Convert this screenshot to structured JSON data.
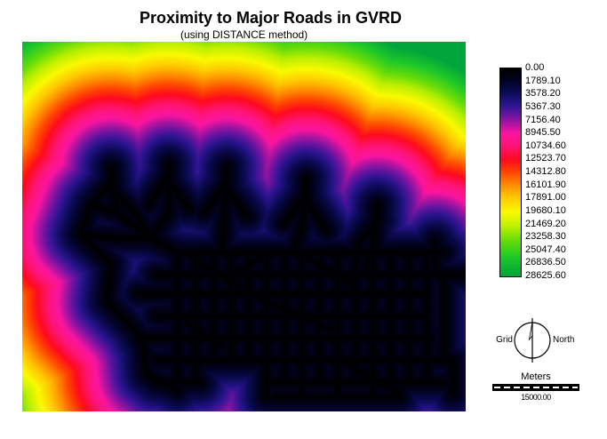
{
  "header": {
    "title": "Proximity to Major Roads in GVRD",
    "subtitle": "(using DISTANCE method)"
  },
  "chart_data": {
    "type": "heatmap",
    "title": "Proximity to Major Roads in GVRD",
    "subtitle": "(using DISTANCE method)",
    "value_units": "Meters",
    "value_range": [
      0,
      28625.6
    ],
    "legend_position": "right",
    "legend_values": [
      "0.00",
      "1789.10",
      "3578.20",
      "5367.30",
      "7156.40",
      "8945.50",
      "10734.60",
      "12523.70",
      "14312.80",
      "16101.90",
      "17891.00",
      "19680.10",
      "21469.20",
      "23258.30",
      "25047.40",
      "26836.50",
      "28625.60"
    ],
    "colormap_stops": [
      {
        "t": 0.0,
        "c": "#000000"
      },
      {
        "t": 0.05,
        "c": "#02021e"
      },
      {
        "t": 0.11,
        "c": "#0a0a50"
      },
      {
        "t": 0.17,
        "c": "#28148c"
      },
      {
        "t": 0.22,
        "c": "#6414a0"
      },
      {
        "t": 0.27,
        "c": "#b414a0"
      },
      {
        "t": 0.31,
        "c": "#fa14a0"
      },
      {
        "t": 0.37,
        "c": "#ff1478"
      },
      {
        "t": 0.44,
        "c": "#ff0a1e"
      },
      {
        "t": 0.5,
        "c": "#ff4600"
      },
      {
        "t": 0.56,
        "c": "#ff8c00"
      },
      {
        "t": 0.62,
        "c": "#ffc800"
      },
      {
        "t": 0.69,
        "c": "#fafa00"
      },
      {
        "t": 0.76,
        "c": "#bef000"
      },
      {
        "t": 0.83,
        "c": "#64dc0a"
      },
      {
        "t": 0.91,
        "c": "#1ec828"
      },
      {
        "t": 1.0,
        "c": "#00a53c"
      }
    ],
    "meters_per_pixel": 160,
    "road_segments": [
      [
        0.2,
        0.34,
        0.21,
        0.46
      ],
      [
        0.33,
        0.33,
        0.33,
        0.46
      ],
      [
        0.46,
        0.34,
        0.455,
        0.47
      ],
      [
        0.64,
        0.37,
        0.63,
        0.5
      ],
      [
        0.8,
        0.44,
        0.79,
        0.56
      ],
      [
        0.93,
        0.54,
        0.93,
        0.63
      ],
      [
        0.2,
        0.38,
        0.155,
        0.44
      ],
      [
        0.2,
        0.4,
        0.25,
        0.46
      ],
      [
        0.33,
        0.36,
        0.285,
        0.44
      ],
      [
        0.33,
        0.38,
        0.375,
        0.45
      ],
      [
        0.46,
        0.38,
        0.41,
        0.46
      ],
      [
        0.46,
        0.4,
        0.505,
        0.47
      ],
      [
        0.64,
        0.41,
        0.59,
        0.49
      ],
      [
        0.64,
        0.43,
        0.685,
        0.51
      ],
      [
        0.8,
        0.48,
        0.755,
        0.55
      ],
      [
        0.155,
        0.44,
        0.21,
        0.46
      ],
      [
        0.155,
        0.44,
        0.13,
        0.52
      ],
      [
        0.13,
        0.52,
        0.2,
        0.6
      ],
      [
        0.2,
        0.6,
        0.19,
        0.7
      ],
      [
        0.19,
        0.7,
        0.27,
        0.8
      ],
      [
        0.27,
        0.8,
        0.28,
        0.9
      ],
      [
        0.28,
        0.9,
        0.35,
        0.94
      ],
      [
        0.13,
        0.52,
        0.22,
        0.53
      ],
      [
        0.21,
        0.46,
        0.29,
        0.53
      ],
      [
        0.29,
        0.53,
        0.33,
        0.46
      ],
      [
        0.29,
        0.53,
        0.35,
        0.57
      ],
      [
        0.455,
        0.47,
        0.45,
        0.57
      ],
      [
        0.63,
        0.5,
        0.61,
        0.57
      ],
      [
        0.79,
        0.56,
        0.77,
        0.62
      ],
      [
        0.22,
        0.53,
        0.29,
        0.53
      ],
      [
        0.25,
        0.46,
        0.29,
        0.53
      ],
      [
        0.35,
        0.57,
        0.95,
        0.57
      ],
      [
        0.3,
        0.63,
        1.0,
        0.63
      ],
      [
        0.26,
        0.68,
        0.9,
        0.68
      ],
      [
        0.3,
        0.74,
        0.9,
        0.74
      ],
      [
        0.26,
        0.8,
        0.92,
        0.8
      ],
      [
        0.3,
        0.86,
        0.97,
        0.86
      ],
      [
        0.55,
        0.92,
        0.95,
        0.92
      ],
      [
        0.57,
        0.96,
        0.85,
        0.96
      ],
      [
        0.3,
        0.92,
        0.4,
        0.92
      ],
      [
        0.35,
        0.57,
        0.35,
        0.92
      ],
      [
        0.39,
        0.57,
        0.39,
        0.9
      ],
      [
        0.43,
        0.59,
        0.43,
        0.86
      ],
      [
        0.47,
        0.57,
        0.47,
        0.86
      ],
      [
        0.51,
        0.59,
        0.51,
        0.86
      ],
      [
        0.55,
        0.57,
        0.55,
        0.96
      ],
      [
        0.59,
        0.59,
        0.59,
        0.92
      ],
      [
        0.63,
        0.57,
        0.63,
        0.96
      ],
      [
        0.67,
        0.59,
        0.67,
        0.92
      ],
      [
        0.71,
        0.57,
        0.71,
        0.96
      ],
      [
        0.75,
        0.59,
        0.75,
        0.92
      ],
      [
        0.79,
        0.57,
        0.79,
        0.96
      ],
      [
        0.83,
        0.59,
        0.83,
        0.92
      ],
      [
        0.87,
        0.57,
        0.87,
        0.92
      ],
      [
        0.91,
        0.57,
        0.91,
        0.92
      ],
      [
        0.95,
        0.63,
        0.95,
        0.86
      ],
      [
        0.97,
        0.86,
        0.97,
        0.95
      ],
      [
        0.4,
        0.6,
        0.55,
        0.7
      ],
      [
        0.55,
        0.7,
        0.7,
        0.78
      ],
      [
        0.62,
        0.57,
        0.75,
        0.66
      ],
      [
        0.35,
        0.74,
        0.45,
        0.82
      ],
      [
        0.72,
        0.86,
        0.85,
        0.95
      ],
      [
        0.47,
        0.63,
        0.56,
        0.57
      ]
    ]
  },
  "north_arrow": {
    "left_label": "Grid",
    "right_label": "North"
  },
  "scale_bar": {
    "unit_label": "Meters",
    "length_label": "15000.00"
  }
}
